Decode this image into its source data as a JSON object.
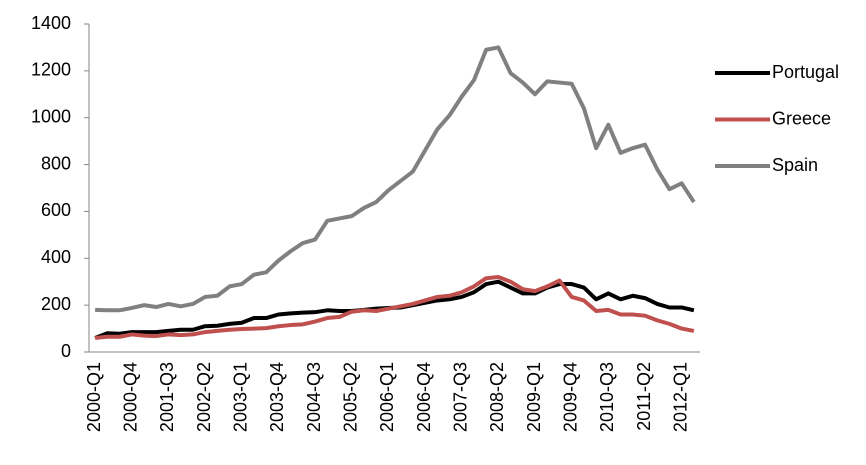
{
  "chart_data": {
    "type": "line",
    "categories": [
      "2000-Q1",
      null,
      null,
      "2000-Q4",
      null,
      null,
      "2001-Q3",
      null,
      null,
      "2002-Q2",
      null,
      null,
      "2003-Q1",
      null,
      null,
      "2003-Q4",
      null,
      null,
      "2004-Q3",
      null,
      null,
      "2005-Q2",
      null,
      null,
      "2006-Q1",
      null,
      null,
      "2006-Q4",
      null,
      null,
      "2007-Q3",
      null,
      null,
      "2008-Q2",
      null,
      null,
      "2009-Q1",
      null,
      null,
      "2009-Q4",
      null,
      null,
      "2010-Q3",
      null,
      null,
      "2011-Q2",
      null,
      null,
      "2012-Q1",
      null
    ],
    "series": [
      {
        "name": "Portugal",
        "color": "#000000",
        "values": [
          60,
          80,
          78,
          85,
          85,
          85,
          90,
          95,
          95,
          110,
          112,
          120,
          125,
          145,
          145,
          160,
          165,
          168,
          170,
          178,
          175,
          175,
          180,
          185,
          188,
          190,
          200,
          210,
          220,
          225,
          235,
          255,
          290,
          300,
          275,
          250,
          250,
          275,
          290,
          290,
          275,
          225,
          250,
          225,
          240,
          230,
          205,
          190,
          190,
          178
        ]
      },
      {
        "name": "Greece",
        "color": "#c0504d",
        "values": [
          60,
          65,
          65,
          75,
          70,
          68,
          75,
          72,
          75,
          85,
          90,
          95,
          98,
          100,
          102,
          110,
          115,
          118,
          130,
          145,
          150,
          172,
          178,
          175,
          185,
          195,
          205,
          220,
          235,
          240,
          255,
          280,
          315,
          320,
          300,
          268,
          260,
          280,
          305,
          235,
          220,
          175,
          180,
          160,
          160,
          155,
          135,
          120,
          100,
          90
        ]
      },
      {
        "name": "Spain",
        "color": "#808080",
        "values": [
          180,
          178,
          178,
          188,
          200,
          192,
          205,
          195,
          205,
          235,
          240,
          280,
          290,
          330,
          340,
          390,
          430,
          465,
          480,
          560,
          570,
          580,
          615,
          640,
          690,
          730,
          770,
          860,
          950,
          1010,
          1090,
          1160,
          1290,
          1300,
          1190,
          1150,
          1100,
          1155,
          1150,
          1145,
          1040,
          870,
          970,
          850,
          870,
          885,
          780,
          695,
          720,
          640
        ]
      }
    ],
    "ylim": [
      0,
      1400
    ],
    "yticks": [
      0,
      200,
      400,
      600,
      800,
      1000,
      1200,
      1400
    ],
    "legend": "right"
  }
}
